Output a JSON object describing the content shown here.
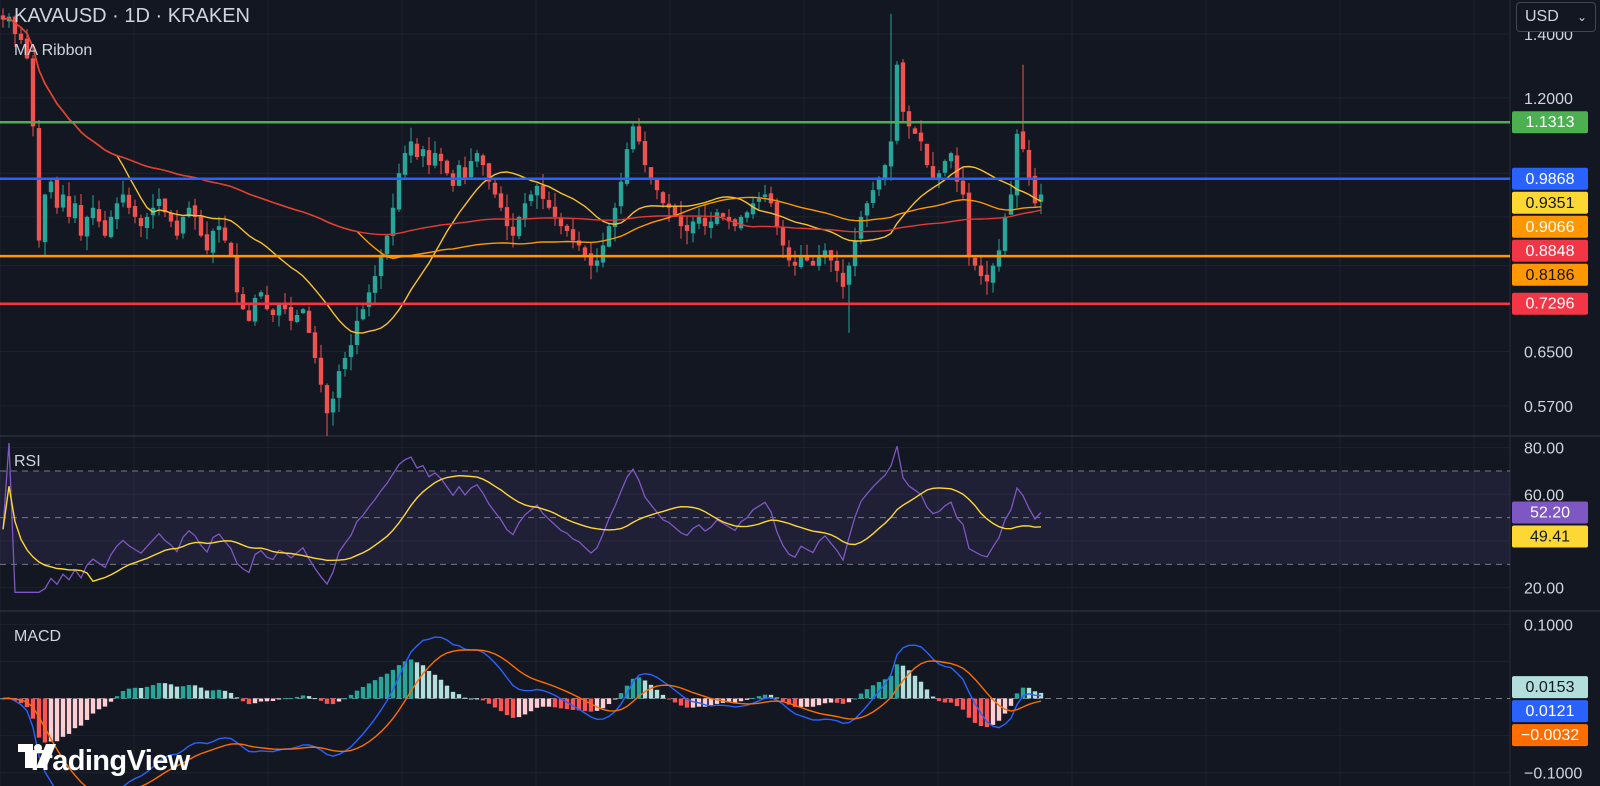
{
  "header": {
    "title": "KAVAUSD · 1D · KRAKEN",
    "indicator_label": "MA Ribbon",
    "currency": "USD"
  },
  "branding": {
    "name": "TradingView"
  },
  "colors": {
    "background": "#131722",
    "grid": "#1e222d",
    "text": "#d1d4dc",
    "up": "#26a69a",
    "down": "#ef5350",
    "level_green": "#4caf50",
    "level_blue": "#2962ff",
    "level_orange": "#ff9800",
    "level_red": "#f23645",
    "ma_fast": "#fbc02d",
    "ma_mid": "#ff9800",
    "ma_slow": "#e53935",
    "rsi": "#7e57c2",
    "rsi_ma": "#fdd835",
    "macd": "#2962ff",
    "signal": "#ff6d00"
  },
  "chart_data": [
    {
      "type": "candlestick",
      "pane": "price",
      "symbol": "KAVAUSD",
      "interval": "1D",
      "exchange": "KRAKEN",
      "scale": "log",
      "y_ticks": [
        "1.4000",
        "1.2000",
        "0.6500",
        "0.5700"
      ],
      "ylim": [
        0.53,
        1.52
      ],
      "ohlc_path": [
        1.45,
        1.46,
        1.4,
        1.38,
        1.32,
        1.12,
        0.85,
        0.95,
        0.98,
        0.92,
        0.95,
        0.9,
        0.93,
        0.86,
        0.9,
        0.92,
        0.89,
        0.86,
        0.9,
        0.93,
        0.95,
        0.92,
        0.9,
        0.88,
        0.9,
        0.92,
        0.94,
        0.91,
        0.89,
        0.86,
        0.9,
        0.92,
        0.9,
        0.86,
        0.83,
        0.87,
        0.88,
        0.85,
        0.82,
        0.75,
        0.72,
        0.7,
        0.74,
        0.75,
        0.72,
        0.71,
        0.73,
        0.72,
        0.7,
        0.71,
        0.72,
        0.68,
        0.64,
        0.6,
        0.56,
        0.58,
        0.62,
        0.64,
        0.66,
        0.7,
        0.72,
        0.75,
        0.78,
        0.82,
        0.86,
        0.92,
        1.0,
        1.05,
        1.08,
        1.04,
        1.06,
        1.02,
        1.05,
        1.03,
        1.0,
        0.97,
        1.02,
        0.99,
        1.03,
        1.05,
        1.02,
        0.98,
        0.95,
        0.92,
        0.88,
        0.86,
        0.9,
        0.93,
        0.95,
        0.97,
        0.94,
        0.92,
        0.9,
        0.88,
        0.87,
        0.85,
        0.84,
        0.82,
        0.8,
        0.81,
        0.84,
        0.88,
        0.92,
        0.98,
        1.06,
        1.12,
        1.08,
        1.02,
        0.99,
        0.96,
        0.93,
        0.92,
        0.9,
        0.88,
        0.87,
        0.89,
        0.9,
        0.88,
        0.89,
        0.91,
        0.9,
        0.89,
        0.88,
        0.9,
        0.91,
        0.93,
        0.94,
        0.95,
        0.93,
        0.88,
        0.84,
        0.81,
        0.8,
        0.82,
        0.81,
        0.8,
        0.82,
        0.83,
        0.81,
        0.79,
        0.76,
        0.8,
        0.85,
        0.9,
        0.93,
        0.96,
        0.99,
        1.02,
        1.08,
        1.3,
        1.16,
        1.12,
        1.1,
        1.08,
        1.02,
        0.99,
        1.0,
        1.03,
        1.05,
        0.98,
        0.95,
        0.82,
        0.8,
        0.78,
        0.77,
        0.8,
        0.83,
        0.9,
        0.95,
        1.1,
        1.06,
        0.99,
        0.93,
        0.95
      ],
      "horizontal_levels": [
        {
          "value": 1.1313,
          "label": "1.1313",
          "color": "#4caf50"
        },
        {
          "value": 0.9868,
          "label": "0.9868",
          "color": "#2962ff"
        },
        {
          "value": 0.8186,
          "label": "0.8186",
          "color": "#ff9800"
        },
        {
          "value": 0.7296,
          "label": "0.7296",
          "color": "#f23645"
        }
      ],
      "series": [
        {
          "name": "MA Ribbon",
          "color": "#fbc02d",
          "period": 20,
          "last": 0.9351
        },
        {
          "color": "#ff9800",
          "period": 100,
          "last": 0.9066
        },
        {
          "color": "#e53935",
          "period": 200,
          "last": 0.8848
        }
      ],
      "price_labels": [
        {
          "label": "1.1313",
          "value": 1.1313,
          "bg": "#4caf50",
          "fg": "#ffffff"
        },
        {
          "label": "0.9868",
          "value": 0.9868,
          "bg": "#2962ff",
          "fg": "#ffffff"
        },
        {
          "label": "0.9351",
          "value": 0.9351,
          "bg": "#fdd835",
          "fg": "#131722"
        },
        {
          "label": "0.9066",
          "value": 0.9066,
          "bg": "#ff9800",
          "fg": "#ffffff"
        },
        {
          "label": "0.8848",
          "value": 0.8848,
          "bg": "#f23645",
          "fg": "#ffffff"
        },
        {
          "label": "0.8186",
          "value": 0.8186,
          "bg": "#ff9800",
          "fg": "#131722"
        },
        {
          "label": "0.7296",
          "value": 0.7296,
          "bg": "#f23645",
          "fg": "#ffffff"
        }
      ]
    },
    {
      "type": "line",
      "pane": "rsi",
      "title": "RSI",
      "y_ticks": [
        "80.00",
        "60.00",
        "20.00"
      ],
      "ylim": [
        10,
        85
      ],
      "band": [
        30,
        70
      ],
      "midline": 50,
      "series": [
        {
          "color": "#7e57c2",
          "period": 14,
          "last": 52.2
        },
        {
          "color": "#fdd835",
          "period": 14,
          "last": 49.41
        }
      ],
      "value_labels": [
        {
          "label": "52.20",
          "value": 52.2,
          "bg": "#7e57c2",
          "fg": "#ffffff"
        },
        {
          "label": "49.41",
          "value": 49.41,
          "bg": "#fdd835",
          "fg": "#131722"
        }
      ]
    },
    {
      "type": "histogram",
      "pane": "macd",
      "title": "MACD",
      "y_ticks": [
        "0.1000",
        "−0.1000"
      ],
      "ylim": [
        -0.118,
        0.118
      ],
      "series": [
        {
          "color": "#26a69a",
          "type": "bar",
          "last": 0.0153
        },
        {
          "color": "#2962ff",
          "type": "line",
          "last": 0.0121
        },
        {
          "color": "#ff6d00",
          "type": "line",
          "last": -0.0032
        }
      ],
      "value_labels": [
        {
          "label": "0.0153",
          "value": 0.0153,
          "bg": "#b2dfdb",
          "fg": "#131722"
        },
        {
          "label": "0.0121",
          "value": 0.0121,
          "bg": "#2962ff",
          "fg": "#ffffff"
        },
        {
          "label": "−0.0032",
          "value": -0.0032,
          "bg": "#ff6d00",
          "fg": "#ffffff"
        }
      ]
    }
  ]
}
